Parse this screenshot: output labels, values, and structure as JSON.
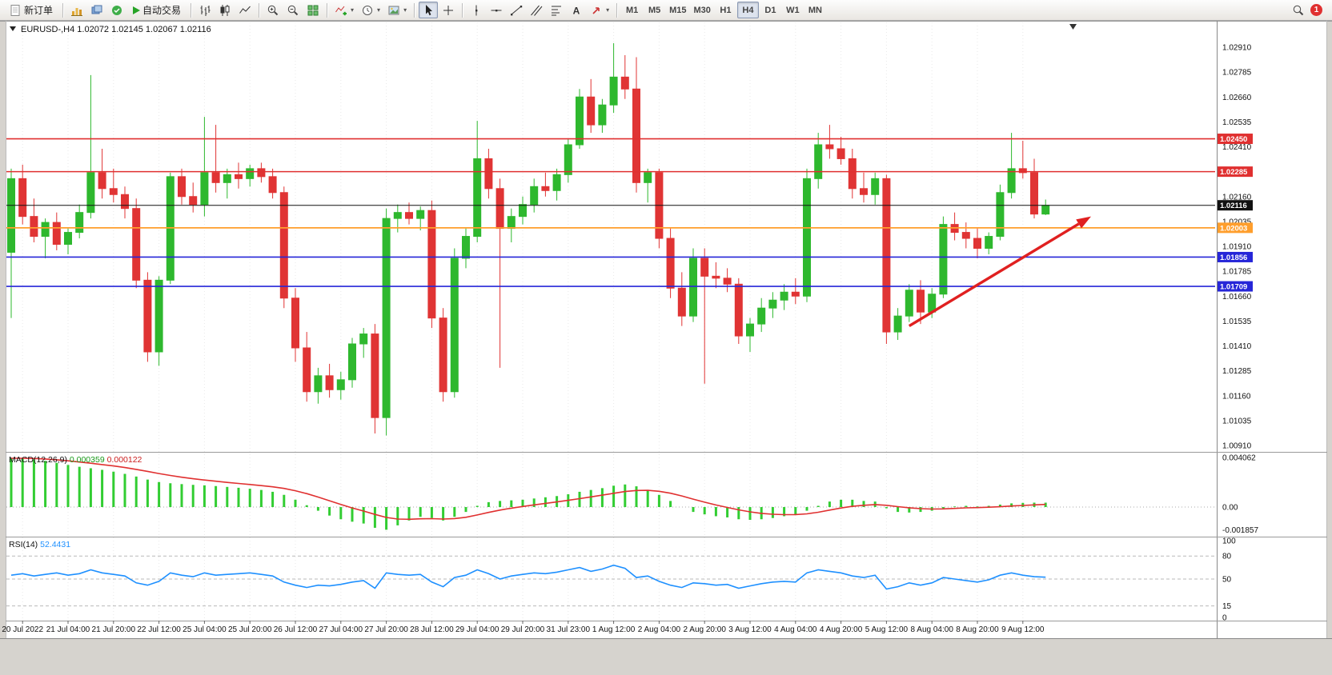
{
  "toolbar": {
    "new_order_label": "新订单",
    "auto_trading_label": "自动交易",
    "timeframes": [
      "M1",
      "M5",
      "M15",
      "M30",
      "H1",
      "H4",
      "D1",
      "W1",
      "MN"
    ],
    "active_timeframe": "H4",
    "notification_count": "1"
  },
  "chart": {
    "title_line": "EURUSD-,H4 1.02072 1.02145 1.02067 1.02116",
    "macd_name": "MACD(12,26,9)",
    "macd_main_value": "0.000359",
    "macd_signal_value": "0.000122",
    "rsi_name": "RSI(14)",
    "rsi_value": "52.4431"
  },
  "chart_data": {
    "type": "candlestick",
    "symbol": "EURUSD-",
    "timeframe": "H4",
    "current": {
      "open": 1.02072,
      "high": 1.02145,
      "low": 1.02067,
      "close": 1.02116
    },
    "y_axis_labels": [
      "1.02910",
      "1.02785",
      "1.02660",
      "1.02535",
      "1.02410",
      "1.02285",
      "1.02160",
      "1.02035",
      "1.01910",
      "1.01785",
      "1.01660",
      "1.01535",
      "1.01410",
      "1.01285",
      "1.01160",
      "1.01035",
      "1.00910"
    ],
    "x_labels": [
      "20 Jul 2022",
      "21 Jul 04:00",
      "21 Jul 20:00",
      "22 Jul 12:00",
      "25 Jul 04:00",
      "25 Jul 20:00",
      "26 Jul 12:00",
      "27 Jul 04:00",
      "27 Jul 20:00",
      "28 Jul 12:00",
      "29 Jul 04:00",
      "29 Jul 20:00",
      "31 Jul 23:00",
      "1 Aug 12:00",
      "2 Aug 04:00",
      "2 Aug 20:00",
      "3 Aug 12:00",
      "4 Aug 04:00",
      "4 Aug 20:00",
      "5 Aug 12:00",
      "8 Aug 04:00",
      "8 Aug 20:00",
      "9 Aug 12:00"
    ],
    "candles": [
      [
        1.0188,
        1.023,
        1.0155,
        1.0225
      ],
      [
        1.0225,
        1.0232,
        1.0202,
        1.0206
      ],
      [
        1.0206,
        1.0215,
        1.0193,
        1.0196
      ],
      [
        1.0196,
        1.0205,
        1.0185,
        1.0203
      ],
      [
        1.0203,
        1.0208,
        1.0189,
        1.0192
      ],
      [
        1.0192,
        1.02,
        1.0187,
        1.0198
      ],
      [
        1.0198,
        1.0212,
        1.0195,
        1.0208
      ],
      [
        1.0208,
        1.0277,
        1.0205,
        1.0228
      ],
      [
        1.0228,
        1.024,
        1.0215,
        1.022
      ],
      [
        1.022,
        1.023,
        1.0213,
        1.0217
      ],
      [
        1.0217,
        1.0221,
        1.0205,
        1.021
      ],
      [
        1.021,
        1.0215,
        1.017,
        1.0174
      ],
      [
        1.0174,
        1.0178,
        1.0133,
        1.0138
      ],
      [
        1.0138,
        1.0176,
        1.0131,
        1.0174
      ],
      [
        1.0174,
        1.0228,
        1.0172,
        1.0226
      ],
      [
        1.0226,
        1.023,
        1.0212,
        1.0216
      ],
      [
        1.0216,
        1.0223,
        1.0208,
        1.0212
      ],
      [
        1.0212,
        1.0256,
        1.0206,
        1.0228
      ],
      [
        1.0228,
        1.0252,
        1.0218,
        1.0223
      ],
      [
        1.0223,
        1.023,
        1.0215,
        1.0227
      ],
      [
        1.0227,
        1.0233,
        1.022,
        1.0225
      ],
      [
        1.0225,
        1.0232,
        1.0221,
        1.023
      ],
      [
        1.023,
        1.0233,
        1.0223,
        1.0226
      ],
      [
        1.0226,
        1.023,
        1.0215,
        1.0218
      ],
      [
        1.0218,
        1.0221,
        1.016,
        1.0165
      ],
      [
        1.0165,
        1.017,
        1.0133,
        1.014
      ],
      [
        1.014,
        1.0148,
        1.0113,
        1.0118
      ],
      [
        1.0118,
        1.013,
        1.0112,
        1.0126
      ],
      [
        1.0126,
        1.0132,
        1.0115,
        1.0119
      ],
      [
        1.0119,
        1.0128,
        1.0114,
        1.0124
      ],
      [
        1.0124,
        1.0145,
        1.012,
        1.0142
      ],
      [
        1.0142,
        1.015,
        1.0135,
        1.0147
      ],
      [
        1.0147,
        1.0152,
        1.0097,
        1.0105
      ],
      [
        1.0105,
        1.021,
        1.0096,
        1.0205
      ],
      [
        1.0205,
        1.0212,
        1.0198,
        1.0208
      ],
      [
        1.0208,
        1.0213,
        1.0202,
        1.0205
      ],
      [
        1.0205,
        1.0211,
        1.0199,
        1.0209
      ],
      [
        1.0209,
        1.0214,
        1.015,
        1.0155
      ],
      [
        1.0155,
        1.016,
        1.0113,
        1.0118
      ],
      [
        1.0118,
        1.019,
        1.0115,
        1.0185
      ],
      [
        1.0185,
        1.02,
        1.018,
        1.0196
      ],
      [
        1.0196,
        1.0254,
        1.0193,
        1.0235
      ],
      [
        1.0235,
        1.024,
        1.0215,
        1.022
      ],
      [
        1.022,
        1.0225,
        1.013,
        1.02
      ],
      [
        1.02,
        1.021,
        1.0193,
        1.0206
      ],
      [
        1.0206,
        1.0216,
        1.0202,
        1.0212
      ],
      [
        1.0212,
        1.0225,
        1.0208,
        1.0221
      ],
      [
        1.0221,
        1.0228,
        1.0216,
        1.0219
      ],
      [
        1.0219,
        1.023,
        1.0214,
        1.0227
      ],
      [
        1.0227,
        1.0245,
        1.0223,
        1.0242
      ],
      [
        1.0242,
        1.027,
        1.024,
        1.0266
      ],
      [
        1.0266,
        1.0275,
        1.0248,
        1.0252
      ],
      [
        1.0252,
        1.0265,
        1.0248,
        1.0262
      ],
      [
        1.0262,
        1.0293,
        1.0258,
        1.0276
      ],
      [
        1.0276,
        1.0287,
        1.0265,
        1.027
      ],
      [
        1.027,
        1.0286,
        1.0218,
        1.0223
      ],
      [
        1.0223,
        1.023,
        1.0213,
        1.0228
      ],
      [
        1.0228,
        1.023,
        1.019,
        1.0195
      ],
      [
        1.0195,
        1.02,
        1.0165,
        1.017
      ],
      [
        1.017,
        1.0178,
        1.0151,
        1.0156
      ],
      [
        1.0156,
        1.019,
        1.0153,
        1.0185
      ],
      [
        1.0185,
        1.019,
        1.0122,
        1.0176
      ],
      [
        1.0176,
        1.0183,
        1.017,
        1.0175
      ],
      [
        1.0175,
        1.018,
        1.0168,
        1.0172
      ],
      [
        1.0172,
        1.0175,
        1.0142,
        1.0146
      ],
      [
        1.0146,
        1.0155,
        1.0138,
        1.0152
      ],
      [
        1.0152,
        1.0165,
        1.0148,
        1.016
      ],
      [
        1.016,
        1.0168,
        1.0155,
        1.0164
      ],
      [
        1.0164,
        1.0172,
        1.0159,
        1.0168
      ],
      [
        1.0168,
        1.0175,
        1.0162,
        1.0166
      ],
      [
        1.0166,
        1.023,
        1.0163,
        1.0225
      ],
      [
        1.0225,
        1.0248,
        1.022,
        1.0242
      ],
      [
        1.0242,
        1.0252,
        1.0235,
        1.024
      ],
      [
        1.024,
        1.0246,
        1.0232,
        1.0235
      ],
      [
        1.0235,
        1.024,
        1.0215,
        1.022
      ],
      [
        1.022,
        1.0228,
        1.0213,
        1.0217
      ],
      [
        1.0217,
        1.0228,
        1.0212,
        1.0225
      ],
      [
        1.0225,
        1.0227,
        1.0142,
        1.0148
      ],
      [
        1.0148,
        1.016,
        1.0144,
        1.0156
      ],
      [
        1.0156,
        1.0172,
        1.0153,
        1.0169
      ],
      [
        1.0169,
        1.0174,
        1.0152,
        1.0158
      ],
      [
        1.0158,
        1.017,
        1.0155,
        1.0167
      ],
      [
        1.0167,
        1.0206,
        1.0165,
        1.0202
      ],
      [
        1.0202,
        1.0208,
        1.0194,
        1.0198
      ],
      [
        1.0198,
        1.0203,
        1.019,
        1.0195
      ],
      [
        1.0195,
        1.02,
        1.0185,
        1.019
      ],
      [
        1.019,
        1.0198,
        1.0187,
        1.0196
      ],
      [
        1.0196,
        1.0222,
        1.0194,
        1.0218
      ],
      [
        1.0218,
        1.0248,
        1.0215,
        1.023
      ],
      [
        1.023,
        1.0244,
        1.0225,
        1.0228
      ],
      [
        1.0228,
        1.0235,
        1.0205,
        1.02072
      ],
      [
        1.02072,
        1.02145,
        1.02067,
        1.02116
      ]
    ],
    "hlines": [
      {
        "price": 1.0245,
        "label": "1.02450",
        "color": "#e03030",
        "name": "resistance-line-1",
        "width": 1.6
      },
      {
        "price": 1.02285,
        "label": "1.02285",
        "color": "#e03030",
        "name": "resistance-line-2",
        "width": 1.6
      },
      {
        "price": 1.02116,
        "label": "1.02116",
        "color": "#111111",
        "name": "bid-price-line",
        "width": 1
      },
      {
        "price": 1.02003,
        "label": "1.02003",
        "color": "#ff9e2c",
        "name": "orange-level-line",
        "width": 1.8
      },
      {
        "price": 1.01856,
        "label": "1.01856",
        "color": "#2626d8",
        "name": "support-line-1",
        "width": 1.6
      },
      {
        "price": 1.01709,
        "label": "1.01709",
        "color": "#2626d8",
        "name": "support-line-2",
        "width": 1.6
      }
    ],
    "trend_arrow": {
      "from_index": 79,
      "from_price": 1.0151,
      "to_index": 95,
      "to_price": 1.0206,
      "color": "#e02020"
    },
    "colors": {
      "up": "#2eb82e",
      "down": "#e03434",
      "macd_bar": "#32cd32",
      "macd_signal": "#e03030",
      "rsi_line": "#1e90ff"
    },
    "macd": {
      "params": "12,26,9",
      "scale_labels": [
        "0.004062",
        "0.00",
        "-0.001857"
      ],
      "scale_max": 0.004062,
      "scale_min": -0.001857,
      "values": [
        0.004,
        0.00398,
        0.0039,
        0.00378,
        0.00362,
        0.00345,
        0.0033,
        0.00318,
        0.00305,
        0.0029,
        0.00272,
        0.0025,
        0.00225,
        0.00205,
        0.00195,
        0.00188,
        0.00182,
        0.00178,
        0.00172,
        0.00165,
        0.00158,
        0.0015,
        0.0014,
        0.00125,
        0.001,
        0.0006,
        0.00015,
        -0.0003,
        -0.0007,
        -0.001,
        -0.0012,
        -0.00135,
        -0.0017,
        -0.00186,
        -0.0015,
        -0.0011,
        -0.0008,
        -0.0009,
        -0.0011,
        -0.0008,
        -0.0004,
        0.0001,
        0.0004,
        0.0005,
        0.00055,
        0.0006,
        0.0007,
        0.0008,
        0.0009,
        0.00105,
        0.00125,
        0.0014,
        0.00155,
        0.00175,
        0.00185,
        0.0017,
        0.0014,
        0.001,
        0.0005,
        0.0,
        -0.0004,
        -0.0006,
        -0.00075,
        -0.00085,
        -0.001,
        -0.00105,
        -0.001,
        -0.0009,
        -0.00075,
        -0.0006,
        -0.0003,
        0.0001,
        0.00045,
        0.0006,
        0.0006,
        0.0005,
        0.00045,
        -0.0001,
        -0.0004,
        -0.00045,
        -0.0004,
        -0.0003,
        -0.0001,
        5e-05,
        0.0001,
        5e-05,
        0.0001,
        0.0002,
        0.0003,
        0.00034,
        0.00036,
        0.000359
      ]
    },
    "rsi": {
      "period": 14,
      "scale_labels": [
        "100",
        "80",
        "50",
        "15",
        "0"
      ],
      "level_lines": [
        80,
        50,
        15
      ],
      "values": [
        55,
        57,
        54,
        56,
        58,
        55,
        57,
        62,
        58,
        56,
        54,
        45,
        42,
        47,
        58,
        55,
        53,
        58,
        55,
        56,
        57,
        58,
        56,
        54,
        46,
        42,
        39,
        42,
        41,
        43,
        46,
        48,
        38,
        58,
        56,
        55,
        56,
        46,
        40,
        52,
        55,
        62,
        57,
        50,
        54,
        56,
        58,
        57,
        59,
        62,
        65,
        60,
        63,
        68,
        64,
        52,
        54,
        47,
        42,
        39,
        45,
        44,
        42,
        43,
        38,
        41,
        44,
        46,
        47,
        46,
        58,
        62,
        60,
        58,
        54,
        52,
        55,
        37,
        40,
        45,
        42,
        45,
        52,
        50,
        48,
        46,
        49,
        55,
        58,
        55,
        53,
        52.44
      ]
    }
  }
}
